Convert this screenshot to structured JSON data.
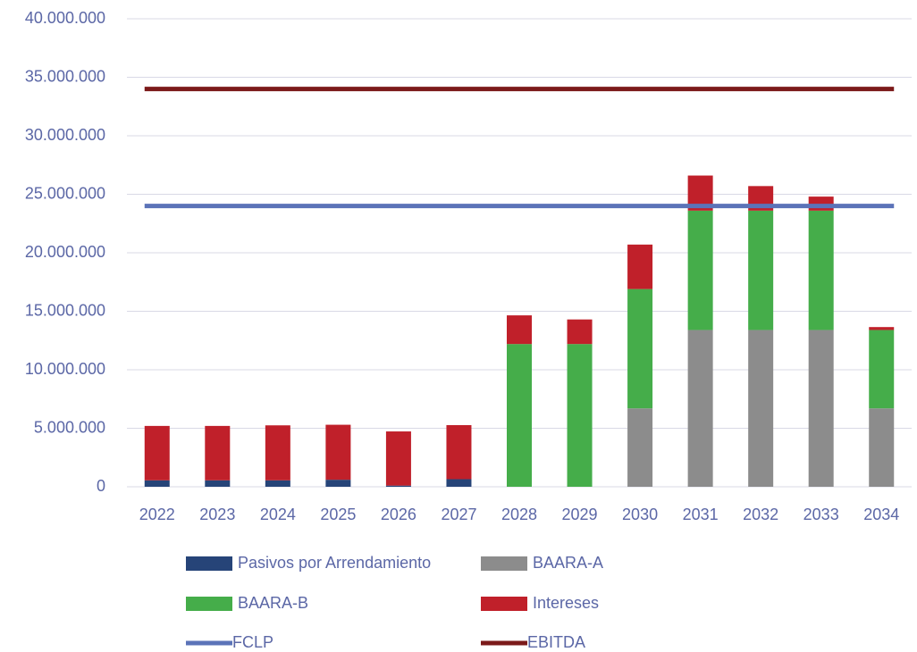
{
  "chart_data": {
    "type": "bar",
    "stacked": true,
    "categories": [
      "2022",
      "2023",
      "2024",
      "2025",
      "2026",
      "2027",
      "2028",
      "2029",
      "2030",
      "2031",
      "2032",
      "2033",
      "2034"
    ],
    "series": [
      {
        "name": "Pasivos por Arrendamiento",
        "color": "#264478",
        "values": [
          550000,
          550000,
          550000,
          600000,
          100000,
          650000,
          0,
          0,
          0,
          0,
          0,
          0,
          0
        ]
      },
      {
        "name": "BAARA-A",
        "color": "#8c8c8c",
        "values": [
          0,
          0,
          0,
          0,
          0,
          0,
          0,
          0,
          6700000,
          13400000,
          13400000,
          13400000,
          6700000
        ]
      },
      {
        "name": "BAARA-B",
        "color": "#45ad4a",
        "values": [
          0,
          0,
          0,
          0,
          0,
          0,
          12200000,
          12200000,
          10200000,
          10200000,
          10200000,
          10200000,
          6700000
        ]
      },
      {
        "name": "Intereses",
        "color": "#c0202a",
        "values": [
          4650000,
          4650000,
          4700000,
          4700000,
          4630000,
          4620000,
          2450000,
          2100000,
          3800000,
          3000000,
          2100000,
          1200000,
          250000
        ]
      },
      {
        "name": "FCLP",
        "type": "line",
        "color": "#5b73b8",
        "values": [
          24000000,
          24000000,
          24000000,
          24000000,
          24000000,
          24000000,
          24000000,
          24000000,
          24000000,
          24000000,
          24000000,
          24000000,
          24000000
        ]
      },
      {
        "name": "EBITDA",
        "type": "line",
        "color": "#7b1a1a",
        "values": [
          34000000,
          34000000,
          34000000,
          34000000,
          34000000,
          34000000,
          34000000,
          34000000,
          34000000,
          34000000,
          34000000,
          34000000,
          34000000
        ]
      }
    ],
    "ylim": [
      0,
      40000000
    ],
    "yticks": [
      0,
      {
        "value": 5000000,
        "label": "5.000.000"
      },
      {
        "value": 10000000,
        "label": "10.000.000"
      },
      {
        "value": 15000000,
        "label": "15.000.000"
      },
      {
        "value": 20000000,
        "label": "20.000.000"
      },
      {
        "value": 25000000,
        "label": "25.000.000"
      },
      {
        "value": 30000000,
        "label": "30.000.000"
      },
      {
        "value": 35000000,
        "label": "35.000.000"
      },
      {
        "value": 40000000,
        "label": "40.000.000"
      }
    ],
    "grid": true
  }
}
